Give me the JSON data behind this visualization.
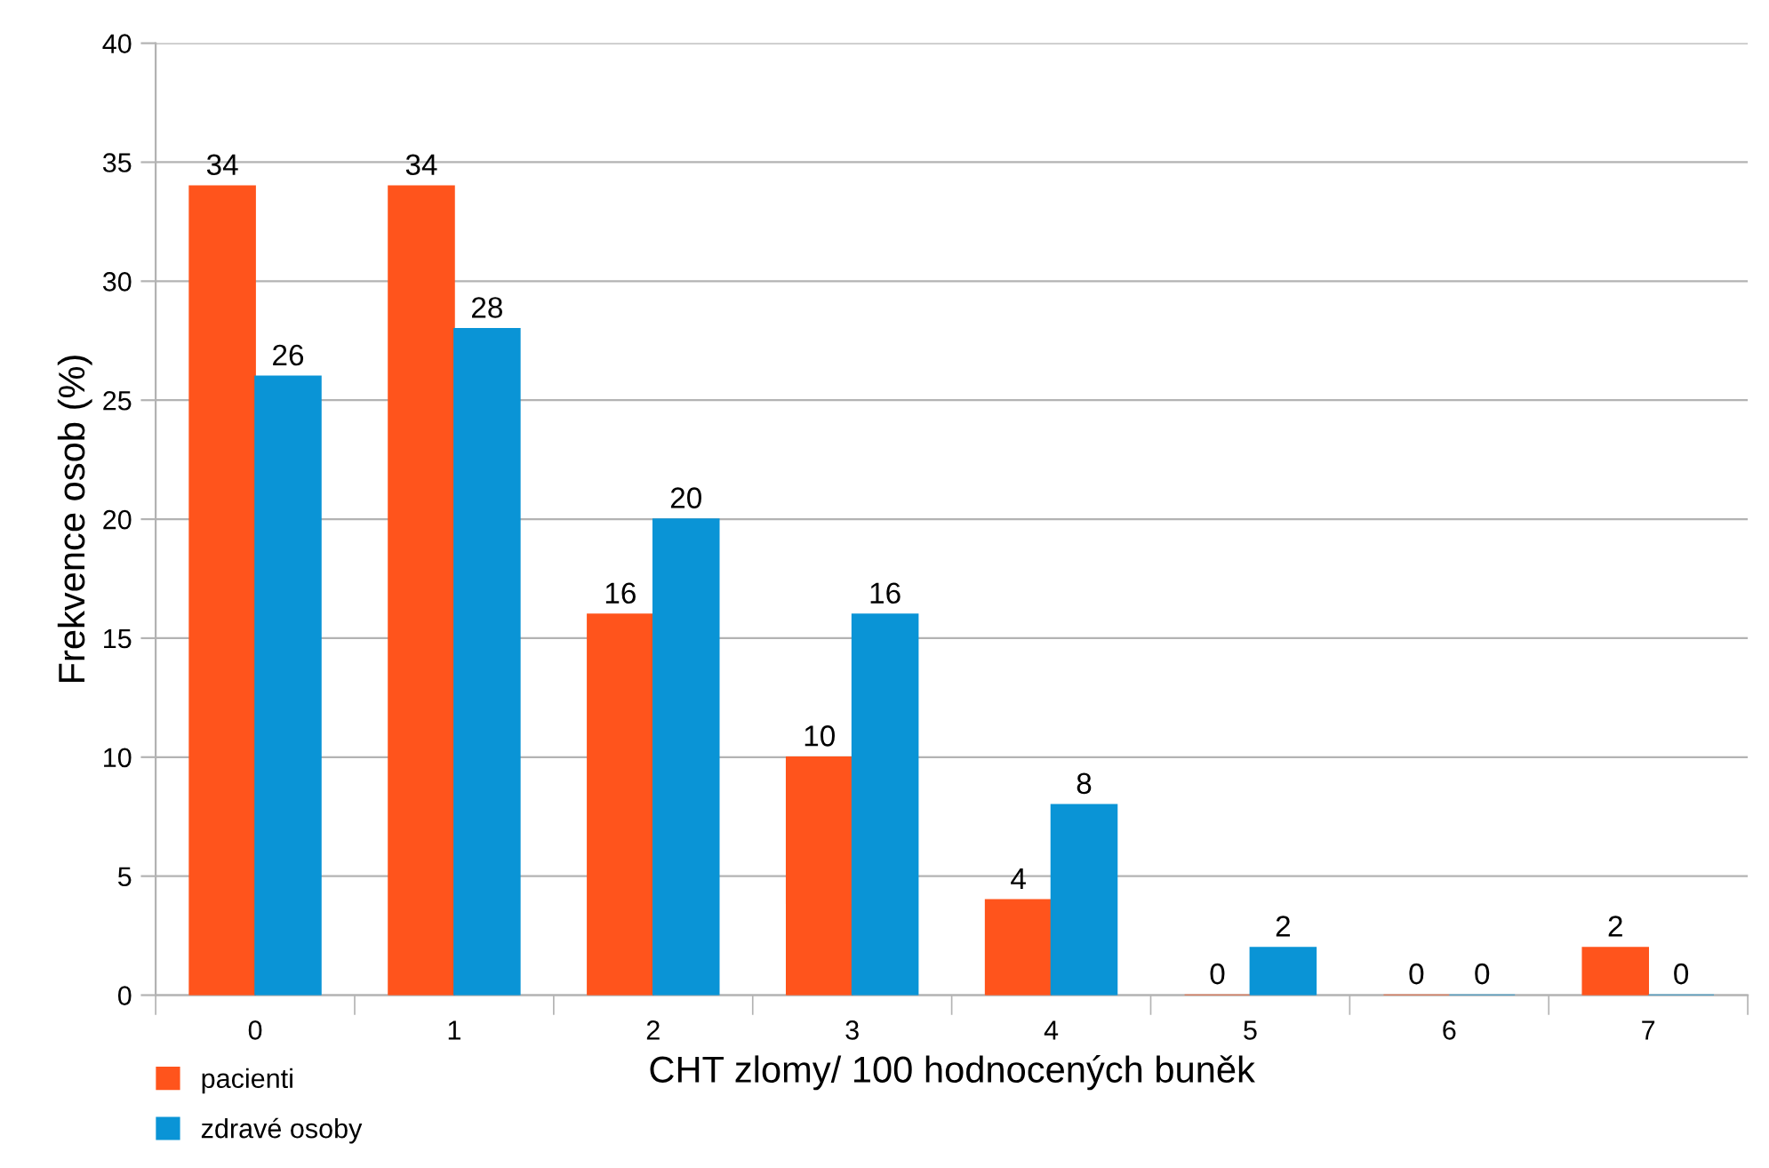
{
  "chart_data": {
    "type": "bar",
    "xlabel": "CHT zlomy/ 100 hodnocených buněk",
    "ylabel": "Frekvence osob (%)",
    "categories": [
      "0",
      "1",
      "2",
      "3",
      "4",
      "5",
      "6",
      "7"
    ],
    "series": [
      {
        "name": "pacienti",
        "color": "#ff541c",
        "values": [
          34,
          34,
          16,
          10,
          4,
          0,
          0,
          2
        ]
      },
      {
        "name": "zdravé osoby",
        "color": "#0a94d6",
        "values": [
          26,
          28,
          20,
          16,
          8,
          2,
          0,
          0
        ]
      }
    ],
    "ylim": [
      0,
      40
    ],
    "yticks": [
      0,
      5,
      10,
      15,
      20,
      25,
      30,
      35,
      40
    ],
    "grid": "y",
    "legend": "bottom left",
    "data_labels": true
  }
}
